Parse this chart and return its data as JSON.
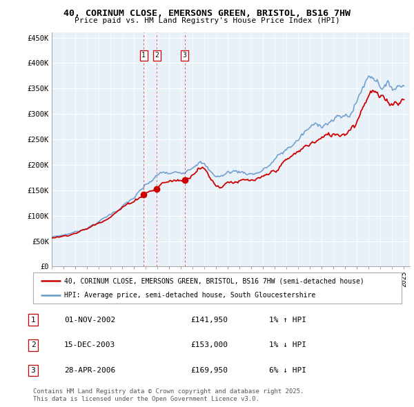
{
  "title": "40, CORINUM CLOSE, EMERSONS GREEN, BRISTOL, BS16 7HW",
  "subtitle": "Price paid vs. HM Land Registry's House Price Index (HPI)",
  "ylabel_ticks": [
    "£0",
    "£50K",
    "£100K",
    "£150K",
    "£200K",
    "£250K",
    "£300K",
    "£350K",
    "£400K",
    "£450K"
  ],
  "ytick_values": [
    0,
    50000,
    100000,
    150000,
    200000,
    250000,
    300000,
    350000,
    400000,
    450000
  ],
  "ylim": [
    0,
    460000
  ],
  "xlim_start": 1995.0,
  "xlim_end": 2025.5,
  "sales": [
    {
      "num": 1,
      "date": "01-NOV-2002",
      "year": 2002.83,
      "price": 141950,
      "pct": "1%",
      "dir": "↑"
    },
    {
      "num": 2,
      "date": "15-DEC-2003",
      "year": 2003.96,
      "price": 153000,
      "pct": "1%",
      "dir": "↓"
    },
    {
      "num": 3,
      "date": "28-APR-2006",
      "year": 2006.32,
      "price": 169950,
      "pct": "6%",
      "dir": "↓"
    }
  ],
  "legend_line1": "40, CORINUM CLOSE, EMERSONS GREEN, BRISTOL, BS16 7HW (semi-detached house)",
  "legend_line2": "HPI: Average price, semi-detached house, South Gloucestershire",
  "footnote1": "Contains HM Land Registry data © Crown copyright and database right 2025.",
  "footnote2": "This data is licensed under the Open Government Licence v3.0.",
  "red_color": "#cc0000",
  "blue_line_color": "#6699cc",
  "chart_bg": "#e8f0f8",
  "grid_color": "#ffffff",
  "outer_bg": "#ffffff"
}
